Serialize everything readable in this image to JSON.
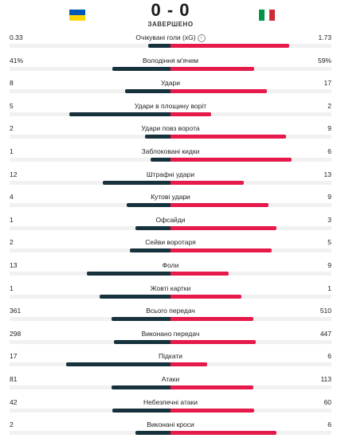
{
  "match": {
    "score": "0 - 0",
    "status": "ЗАВЕРШЕНО",
    "home_flag": {
      "icon": "ukraine-flag",
      "colors": [
        "#0057b7",
        "#ffd700"
      ]
    },
    "away_flag": {
      "icon": "italy-flag",
      "colors": [
        "#009246",
        "#ffffff",
        "#ce2b37"
      ]
    }
  },
  "colors": {
    "home_bar": "#17323d",
    "away_bar": "#e5194a",
    "track": "#f1f1f1"
  },
  "stats": [
    {
      "label": "Очікувані голи (xG)",
      "home": "0.33",
      "away": "1.73",
      "info": true
    },
    {
      "label": "Володіння м'ячем",
      "home": "41%",
      "away": "59%"
    },
    {
      "label": "Удари",
      "home": "8",
      "away": "17"
    },
    {
      "label": "Удари в площину воріт",
      "home": "5",
      "away": "2"
    },
    {
      "label": "Удари повз ворота",
      "home": "2",
      "away": "9"
    },
    {
      "label": "Заблоковані кидки",
      "home": "1",
      "away": "6"
    },
    {
      "label": "Штрафні удари",
      "home": "12",
      "away": "13"
    },
    {
      "label": "Кутові удари",
      "home": "4",
      "away": "9"
    },
    {
      "label": "Офсайди",
      "home": "1",
      "away": "3"
    },
    {
      "label": "Сейви воротаря",
      "home": "2",
      "away": "5"
    },
    {
      "label": "Фоли",
      "home": "13",
      "away": "9"
    },
    {
      "label": "Жовті картки",
      "home": "1",
      "away": "1"
    },
    {
      "label": "Всього передач",
      "home": "361",
      "away": "510"
    },
    {
      "label": "Виконано передач",
      "home": "298",
      "away": "447"
    },
    {
      "label": "Підкати",
      "home": "17",
      "away": "6"
    },
    {
      "label": "Атаки",
      "home": "81",
      "away": "113"
    },
    {
      "label": "Небезпечні атаки",
      "home": "42",
      "away": "60"
    },
    {
      "label": "Виконані кроси",
      "home": "2",
      "away": "6"
    }
  ]
}
